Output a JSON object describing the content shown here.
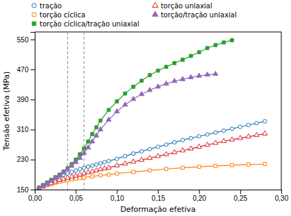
{
  "chart_data": {
    "type": "line",
    "xlabel": "Deformação efetiva",
    "ylabel": "Tensão efetiva (MPa)",
    "xlim": [
      0.0,
      0.3
    ],
    "ylim": [
      150,
      570
    ],
    "xticks": [
      {
        "value": 0.0,
        "label": "0,00"
      },
      {
        "value": 0.05,
        "label": "0,05"
      },
      {
        "value": 0.1,
        "label": "0,10"
      },
      {
        "value": 0.15,
        "label": "0,15"
      },
      {
        "value": 0.2,
        "label": "0,20"
      },
      {
        "value": 0.25,
        "label": "0,25"
      },
      {
        "value": 0.3,
        "label": "0,30"
      }
    ],
    "yticks": [
      150,
      230,
      310,
      390,
      470,
      550
    ],
    "vlines": [
      0.04,
      0.06
    ],
    "legend": "top",
    "grid": false,
    "series": [
      {
        "name": "tração",
        "marker": "circle-open",
        "x": [
          0.005,
          0.01,
          0.015,
          0.02,
          0.025,
          0.03,
          0.035,
          0.04,
          0.045,
          0.05,
          0.055,
          0.06,
          0.065,
          0.07,
          0.075,
          0.08,
          0.085,
          0.09,
          0.1,
          0.11,
          0.12,
          0.13,
          0.14,
          0.15,
          0.16,
          0.17,
          0.18,
          0.19,
          0.2,
          0.21,
          0.22,
          0.23,
          0.24,
          0.25,
          0.26,
          0.27,
          0.28
        ],
        "values": [
          155,
          162,
          168,
          174,
          179,
          184,
          189,
          193,
          197,
          201,
          205,
          208,
          211,
          214,
          217,
          220,
          223,
          226,
          232,
          239,
          246,
          252,
          258,
          264,
          270,
          276,
          282,
          287,
          292,
          297,
          302,
          307,
          312,
          317,
          322,
          327,
          332
        ]
      },
      {
        "name": "torção cíclica",
        "marker": "square-open",
        "x": [
          0.005,
          0.01,
          0.015,
          0.02,
          0.025,
          0.03,
          0.035,
          0.04,
          0.045,
          0.05,
          0.055,
          0.06,
          0.07,
          0.08,
          0.09,
          0.1,
          0.12,
          0.14,
          0.16,
          0.18,
          0.2,
          0.22,
          0.24,
          0.26,
          0.28
        ],
        "values": [
          153,
          158,
          162,
          165,
          168,
          171,
          173,
          175,
          177,
          179,
          181,
          182,
          185,
          188,
          190,
          193,
          197,
          201,
          205,
          208,
          211,
          213,
          215,
          217,
          218
        ]
      },
      {
        "name": "torção cíclica/tração uniaxial",
        "marker": "square",
        "x": [
          0.005,
          0.01,
          0.015,
          0.02,
          0.025,
          0.03,
          0.035,
          0.04,
          0.045,
          0.05,
          0.055,
          0.06,
          0.065,
          0.07,
          0.075,
          0.08,
          0.09,
          0.1,
          0.11,
          0.12,
          0.13,
          0.14,
          0.15,
          0.16,
          0.17,
          0.18,
          0.19,
          0.2,
          0.21,
          0.22,
          0.23,
          0.24
        ],
        "values": [
          155,
          162,
          169,
          176,
          183,
          190,
          198,
          207,
          218,
          230,
          244,
          260,
          278,
          298,
          316,
          334,
          362,
          385,
          406,
          424,
          440,
          455,
          467,
          477,
          487,
          496,
          506,
          516,
          527,
          535,
          542,
          548
        ]
      },
      {
        "name": "torção uniaxial",
        "marker": "triangle-open",
        "x": [
          0.005,
          0.01,
          0.015,
          0.02,
          0.025,
          0.03,
          0.035,
          0.04,
          0.045,
          0.05,
          0.055,
          0.06,
          0.065,
          0.07,
          0.075,
          0.08,
          0.085,
          0.09,
          0.1,
          0.11,
          0.12,
          0.13,
          0.14,
          0.15,
          0.16,
          0.17,
          0.18,
          0.19,
          0.2,
          0.21,
          0.22,
          0.23,
          0.24,
          0.25,
          0.26,
          0.27,
          0.28
        ],
        "values": [
          153,
          158,
          163,
          167,
          171,
          175,
          178,
          181,
          184,
          187,
          190,
          193,
          196,
          198,
          201,
          204,
          206,
          208,
          214,
          219,
          224,
          229,
          234,
          239,
          244,
          249,
          254,
          259,
          264,
          269,
          274,
          279,
          283,
          287,
          291,
          295,
          299
        ]
      },
      {
        "name": "torção/tração uniaxial",
        "marker": "triangle",
        "x": [
          0.005,
          0.01,
          0.015,
          0.02,
          0.025,
          0.03,
          0.035,
          0.04,
          0.045,
          0.05,
          0.055,
          0.06,
          0.065,
          0.07,
          0.075,
          0.08,
          0.09,
          0.1,
          0.11,
          0.12,
          0.13,
          0.14,
          0.15,
          0.16,
          0.17,
          0.18,
          0.19,
          0.2,
          0.21,
          0.22
        ],
        "values": [
          153,
          159,
          166,
          173,
          180,
          187,
          195,
          204,
          213,
          223,
          234,
          247,
          262,
          278,
          294,
          310,
          336,
          358,
          376,
          391,
          404,
          415,
          424,
          432,
          439,
          444,
          449,
          453,
          456,
          458
        ]
      }
    ]
  }
}
